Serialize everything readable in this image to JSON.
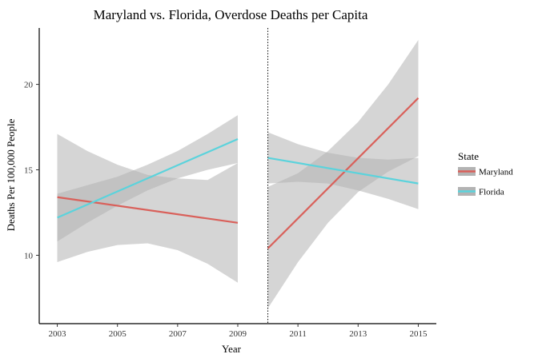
{
  "chart_data": {
    "type": "line",
    "title": "Maryland vs. Florida, Overdose Deaths per Capita",
    "xlabel": "Year",
    "ylabel": "Deaths Per 100,000 People",
    "xlim": [
      2002.4,
      2015.6
    ],
    "ylim": [
      6.0,
      23.3
    ],
    "x_ticks": [
      2003,
      2005,
      2007,
      2009,
      2011,
      2013,
      2015
    ],
    "y_ticks": [
      10,
      15,
      20
    ],
    "grid": false,
    "vline_x": 2010,
    "legend": {
      "title": "State",
      "position": "right"
    },
    "series": [
      {
        "name": "Maryland",
        "color": "#d9605a",
        "segments": [
          {
            "x": [
              2003,
              2009
            ],
            "y": [
              13.4,
              11.9
            ],
            "band_x": [
              2003,
              2004,
              2005,
              2006,
              2007,
              2008,
              2009
            ],
            "band_lower": [
              9.6,
              10.2,
              10.6,
              10.7,
              10.3,
              9.5,
              8.4
            ],
            "band_upper": [
              17.1,
              16.1,
              15.3,
              14.7,
              14.5,
              14.4,
              15.4
            ]
          },
          {
            "x": [
              2010,
              2015
            ],
            "y": [
              10.4,
              19.2
            ],
            "band_x": [
              2010,
              2011,
              2012,
              2013,
              2014,
              2015
            ],
            "band_lower": [
              6.9,
              9.6,
              11.9,
              13.7,
              14.9,
              15.8
            ],
            "band_upper": [
              14.0,
              14.8,
              16.1,
              17.8,
              20.0,
              22.6
            ]
          }
        ]
      },
      {
        "name": "Florida",
        "color": "#5bd3dc",
        "segments": [
          {
            "x": [
              2003,
              2009
            ],
            "y": [
              12.2,
              16.8
            ],
            "band_x": [
              2003,
              2004,
              2005,
              2006,
              2007,
              2008,
              2009
            ],
            "band_lower": [
              10.8,
              11.9,
              12.9,
              13.8,
              14.5,
              15.0,
              15.4
            ],
            "band_upper": [
              13.6,
              14.1,
              14.6,
              15.3,
              16.1,
              17.1,
              18.2
            ]
          },
          {
            "x": [
              2010,
              2015
            ],
            "y": [
              15.7,
              14.2
            ],
            "band_x": [
              2010,
              2011,
              2012,
              2013,
              2014,
              2015
            ],
            "band_lower": [
              14.2,
              14.3,
              14.2,
              13.8,
              13.3,
              12.7
            ],
            "band_upper": [
              17.2,
              16.5,
              16.0,
              15.7,
              15.6,
              15.7
            ]
          }
        ]
      }
    ]
  }
}
